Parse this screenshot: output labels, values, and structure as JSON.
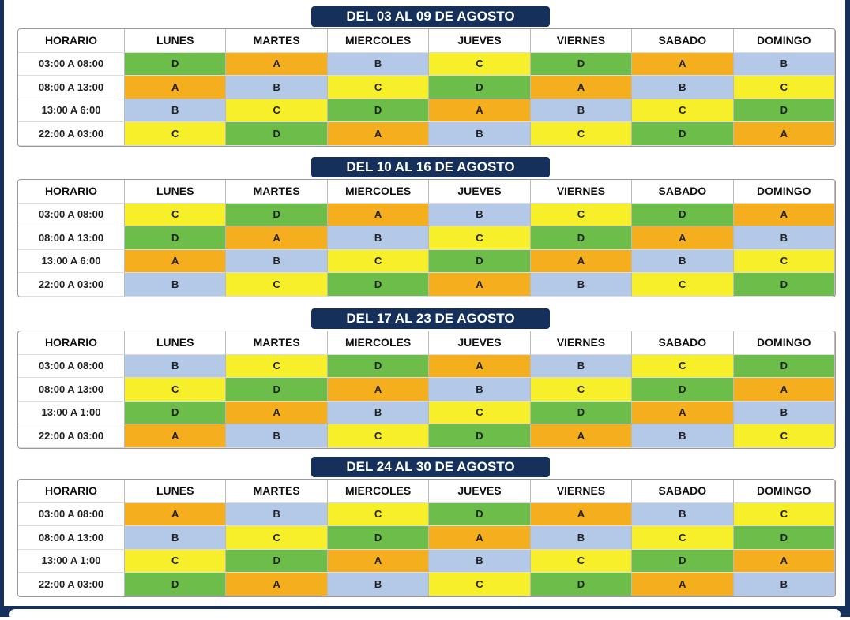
{
  "colors": {
    "A": "#f5ae1e",
    "B": "#b4c8e8",
    "C": "#f6ef2a",
    "D": "#6cbd4a"
  },
  "blocks": [
    {
      "title": "DEL 03 AL 09 DE AGOSTO",
      "header": [
        "HORARIO",
        "LUNES",
        "MARTES",
        "MIERCOLES",
        "JUEVES",
        "VIERNES",
        "SABADO",
        "DOMINGO"
      ],
      "rows": [
        [
          "03:00 A 08:00",
          "D",
          "A",
          "B",
          "C",
          "D",
          "A",
          "B"
        ],
        [
          "08:00 A 13:00",
          "A",
          "B",
          "C",
          "D",
          "A",
          "B",
          "C"
        ],
        [
          "13:00 A 6:00",
          "B",
          "C",
          "D",
          "A",
          "B",
          "C",
          "D"
        ],
        [
          "22:00 A 03:00",
          "C",
          "D",
          "A",
          "B",
          "C",
          "D",
          "A"
        ]
      ]
    },
    {
      "title": "DEL 10 AL 16 DE AGOSTO",
      "header": [
        "HORARIO",
        "LUNES",
        "MARTES",
        "MIERCOLES",
        "JUEVES",
        "VIERNES",
        "SABADO",
        "DOMINGO"
      ],
      "rows": [
        [
          "03:00 A 08:00",
          "C",
          "D",
          "A",
          "B",
          "C",
          "D",
          "A"
        ],
        [
          "08:00 A 13:00",
          "D",
          "A",
          "B",
          "C",
          "D",
          "A",
          "B"
        ],
        [
          "13:00 A 6:00",
          "A",
          "B",
          "C",
          "D",
          "A",
          "B",
          "C"
        ],
        [
          "22:00 A 03:00",
          "B",
          "C",
          "D",
          "A",
          "B",
          "C",
          "D"
        ]
      ]
    },
    {
      "title": "DEL 17 AL 23 DE AGOSTO",
      "header": [
        "HORARIO",
        "LUNES",
        "MARTES",
        "MIERCOLES",
        "JUEVES",
        "VIERNES",
        "SABADO",
        "DOMINGO"
      ],
      "rows": [
        [
          "03:00 A 08:00",
          "B",
          "C",
          "D",
          "A",
          "B",
          "C",
          "D"
        ],
        [
          "08:00 A 13:00",
          "C",
          "D",
          "A",
          "B",
          "C",
          "D",
          "A"
        ],
        [
          "13:00 A 1:00",
          "D",
          "A",
          "B",
          "C",
          "D",
          "A",
          "B"
        ],
        [
          "22:00 A 03:00",
          "A",
          "B",
          "C",
          "D",
          "A",
          "B",
          "C"
        ]
      ]
    },
    {
      "title": "DEL 24 AL 30 DE AGOSTO",
      "header": [
        "HORARIO",
        "LUNES",
        "MARTES",
        "MIERCOLES",
        "JUEVES",
        "VIERNES",
        "SABADO",
        "DOMINGO"
      ],
      "rows": [
        [
          "03:00 A 08:00",
          "A",
          "B",
          "C",
          "D",
          "A",
          "B",
          "C"
        ],
        [
          "08:00 A 13:00",
          "B",
          "C",
          "D",
          "A",
          "B",
          "C",
          "D"
        ],
        [
          "13:00 A 1:00",
          "C",
          "D",
          "A",
          "B",
          "C",
          "D",
          "A"
        ],
        [
          "22:00 A 03:00",
          "D",
          "A",
          "B",
          "C",
          "D",
          "A",
          "B"
        ]
      ]
    }
  ]
}
